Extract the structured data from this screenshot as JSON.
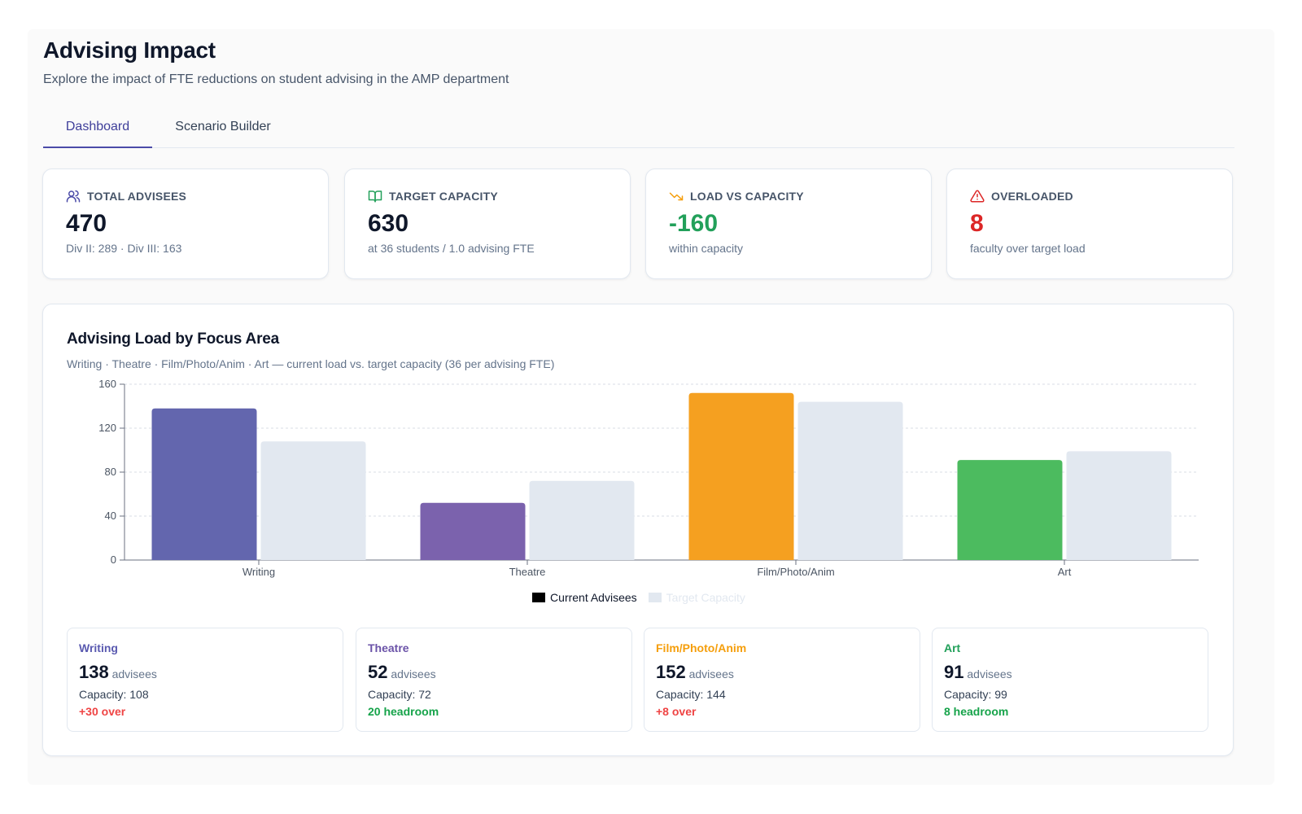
{
  "header": {
    "title": "Advising Impact",
    "subtitle": "Explore the impact of FTE reductions on student advising in the AMP department"
  },
  "tabs": [
    {
      "label": "Dashboard",
      "active": true
    },
    {
      "label": "Scenario Builder",
      "active": false
    }
  ],
  "kpis": [
    {
      "icon": "users-icon",
      "label": "TOTAL ADVISEES",
      "value": "470",
      "sub": "Div II: 289 · Div III: 163",
      "value_color": "#0f172a",
      "icon_color": "#4b4ba8"
    },
    {
      "icon": "book-open-icon",
      "label": "TARGET CAPACITY",
      "value": "630",
      "sub": "at 36 students / 1.0 advising FTE",
      "value_color": "#0f172a",
      "icon_color": "#22a05a"
    },
    {
      "icon": "trending-down-icon",
      "label": "LOAD VS CAPACITY",
      "value": "-160",
      "sub": "within capacity",
      "value_color": "#22a05a",
      "icon_color": "#f59e0b"
    },
    {
      "icon": "alert-triangle-icon",
      "label": "OVERLOADED",
      "value": "8",
      "sub": "faculty over target load",
      "value_color": "#dc2626",
      "icon_color": "#dc2626"
    }
  ],
  "panel": {
    "title": "Advising Load by Focus Area",
    "subtitle": "Writing · Theatre · Film/Photo/Anim · Art — current load vs. target capacity (36 per advising FTE)"
  },
  "chart_data": {
    "type": "bar",
    "categories": [
      "Writing",
      "Theatre",
      "Film/Photo/Anim",
      "Art"
    ],
    "series": [
      {
        "name": "Current Advisees",
        "values": [
          138,
          52,
          152,
          91
        ],
        "colors": [
          "#6366ae",
          "#7b62ad",
          "#f5a020",
          "#4cbb5f"
        ]
      },
      {
        "name": "Target Capacity",
        "values": [
          108,
          72,
          144,
          99
        ],
        "color": "#e2e8f0"
      }
    ],
    "yticks": [
      0,
      40,
      80,
      120,
      160
    ],
    "ylim": [
      0,
      160
    ],
    "grid": true,
    "legend": "bottom-center",
    "legend_swatch_colors": [
      "#000000",
      "#e2e8f0"
    ]
  },
  "areas": [
    {
      "name": "Writing",
      "count": "138",
      "unit": "advisees",
      "capacity": "Capacity: 108",
      "status": "+30 over",
      "name_color": "#5a5ab0",
      "status_color": "#ef4444"
    },
    {
      "name": "Theatre",
      "count": "52",
      "unit": "advisees",
      "capacity": "Capacity: 72",
      "status": "20 headroom",
      "name_color": "#6b53a8",
      "status_color": "#16a34a"
    },
    {
      "name": "Film/Photo/Anim",
      "count": "152",
      "unit": "advisees",
      "capacity": "Capacity: 144",
      "status": "+8 over",
      "name_color": "#f59e0b",
      "status_color": "#ef4444"
    },
    {
      "name": "Art",
      "count": "91",
      "unit": "advisees",
      "capacity": "Capacity: 99",
      "status": "8 headroom",
      "name_color": "#22a05a",
      "status_color": "#16a34a"
    }
  ]
}
